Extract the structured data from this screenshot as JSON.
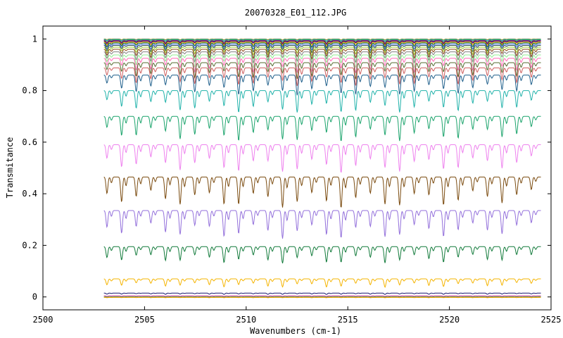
{
  "chart_data": {
    "type": "line",
    "title": "20070328_E01_112.JPG",
    "xlabel": "Wavenumbers (cm-1)",
    "ylabel": "Transmitance",
    "xlim": [
      2500,
      2525
    ],
    "ylim": [
      -0.05,
      1.05
    ],
    "xticks": [
      2500,
      2505,
      2510,
      2515,
      2520,
      2525
    ],
    "xtick_labels": [
      "2500",
      "2505",
      "2510",
      "2515",
      "2520",
      "2525"
    ],
    "yticks": [
      0,
      0.2,
      0.4,
      0.6,
      0.8,
      1
    ],
    "ytick_labels": [
      "0",
      "0.2",
      "0.4",
      "0.6",
      "0.8",
      "1"
    ],
    "grid": false,
    "x_range_of_data": [
      2503,
      2524.5
    ],
    "line_spacing_cm-1": 0.72,
    "series": [
      {
        "baseline": 1.0,
        "depth": 0.004,
        "color": "#8b8b00"
      },
      {
        "baseline": 0.998,
        "depth": 0.006,
        "color": "#1e90ff"
      },
      {
        "baseline": 0.996,
        "depth": 0.008,
        "color": "#32cd32"
      },
      {
        "baseline": 0.994,
        "depth": 0.01,
        "color": "#c71585"
      },
      {
        "baseline": 0.992,
        "depth": 0.012,
        "color": "#000080"
      },
      {
        "baseline": 0.989,
        "depth": 0.015,
        "color": "#ff8c00"
      },
      {
        "baseline": 0.985,
        "depth": 0.018,
        "color": "#006400"
      },
      {
        "baseline": 0.98,
        "depth": 0.022,
        "color": "#4169e1"
      },
      {
        "baseline": 0.975,
        "depth": 0.026,
        "color": "#2f4f4f"
      },
      {
        "baseline": 0.968,
        "depth": 0.03,
        "color": "#9acd32"
      },
      {
        "baseline": 0.96,
        "depth": 0.034,
        "color": "#8b4513"
      },
      {
        "baseline": 0.95,
        "depth": 0.04,
        "color": "#808080"
      },
      {
        "baseline": 0.938,
        "depth": 0.046,
        "color": "#90ee90"
      },
      {
        "baseline": 0.925,
        "depth": 0.052,
        "color": "#ff69b4"
      },
      {
        "baseline": 0.908,
        "depth": 0.058,
        "color": "#556b2f"
      },
      {
        "baseline": 0.888,
        "depth": 0.064,
        "color": "#cd5c5c"
      },
      {
        "baseline": 0.86,
        "depth": 0.072,
        "color": "#1f5f8b"
      },
      {
        "baseline": 0.8,
        "depth": 0.08,
        "color": "#20b2aa"
      },
      {
        "baseline": 0.7,
        "depth": 0.09,
        "color": "#1aa36b"
      },
      {
        "baseline": 0.59,
        "depth": 0.1,
        "color": "#ee82ee"
      },
      {
        "baseline": 0.465,
        "depth": 0.11,
        "color": "#7a4a0e"
      },
      {
        "baseline": 0.335,
        "depth": 0.1,
        "color": "#9370db"
      },
      {
        "baseline": 0.195,
        "depth": 0.06,
        "color": "#117a3a"
      },
      {
        "baseline": 0.07,
        "depth": 0.03,
        "color": "#f5b400"
      },
      {
        "baseline": 0.015,
        "depth": 0.005,
        "color": "#191970"
      },
      {
        "baseline": 0.004,
        "depth": 0.002,
        "color": "#c71585"
      },
      {
        "baseline": 0.0,
        "depth": 0.001,
        "color": "#32cd32"
      },
      {
        "baseline": -0.002,
        "depth": 0.001,
        "color": "#ff8c00"
      }
    ]
  }
}
